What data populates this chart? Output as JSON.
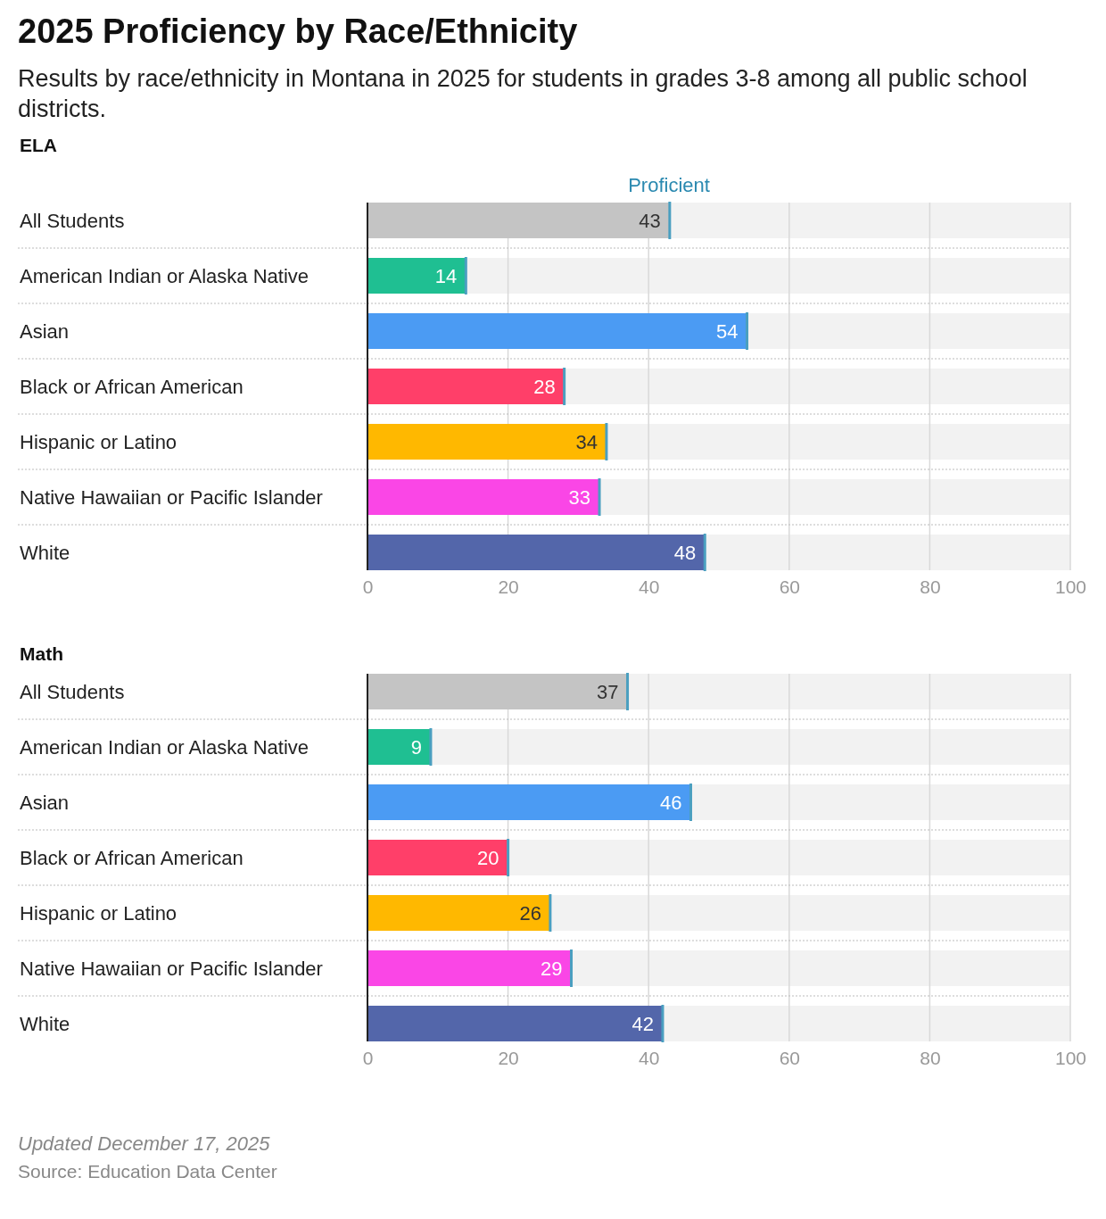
{
  "chart_data": [
    {
      "type": "bar",
      "orientation": "horizontal",
      "title": "2025 Proficiency by Race/Ethnicity",
      "subtitle": "Results by race/ethnicity in Montana in 2025 for students in grades 3-8 among all public school districts.",
      "ylabel": "ELA",
      "categories": [
        "All Students",
        "American Indian or Alaska Native",
        "Asian",
        "Black or African American",
        "Hispanic or Latino",
        "Native Hawaiian or Pacific Islander",
        "White"
      ],
      "colors": [
        "#c4c4c4",
        "#1fbf92",
        "#4b9bf3",
        "#ff3f69",
        "#ffb800",
        "#fa46e6",
        "#5366aa"
      ],
      "series": [
        {
          "name": "Proficient",
          "values": [
            43,
            14,
            54,
            28,
            34,
            33,
            48
          ]
        }
      ],
      "xlim": [
        0,
        100
      ],
      "xticks": [
        0,
        20,
        40,
        60,
        80,
        100
      ],
      "grid": "x",
      "legend": "top",
      "data_labels": true
    },
    {
      "type": "bar",
      "orientation": "horizontal",
      "ylabel": "Math",
      "categories": [
        "All Students",
        "American Indian or Alaska Native",
        "Asian",
        "Black or African American",
        "Hispanic or Latino",
        "Native Hawaiian or Pacific Islander",
        "White"
      ],
      "colors": [
        "#c4c4c4",
        "#1fbf92",
        "#4b9bf3",
        "#ff3f69",
        "#ffb800",
        "#fa46e6",
        "#5366aa"
      ],
      "series": [
        {
          "values": [
            37,
            9,
            46,
            20,
            26,
            29,
            42
          ]
        }
      ],
      "xlim": [
        0,
        100
      ],
      "xticks": [
        0,
        20,
        40,
        60,
        80,
        100
      ],
      "grid": "x",
      "data_labels": true,
      "annotations": [
        "Updated December 17, 2025",
        "Source: Education Data Center"
      ]
    }
  ]
}
